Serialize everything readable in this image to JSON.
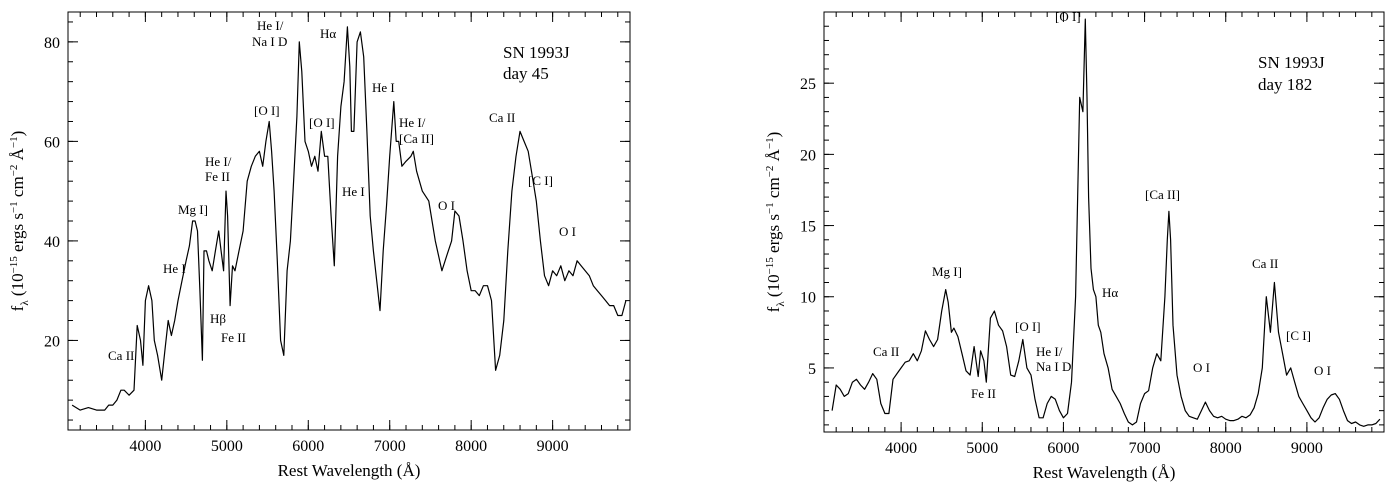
{
  "figure": {
    "panels": [
      {
        "panel_id": "left"
      },
      {
        "panel_id": "right"
      }
    ]
  },
  "chart_data": [
    {
      "type": "line",
      "title": "SN 1993J",
      "subtitle": "day 45",
      "xlabel": "Rest Wavelength (Å)",
      "ylabel": "f_λ (10^-15 ergs s^-1 cm^-2 Å^-1)",
      "xlim": [
        3050,
        9950
      ],
      "ylim": [
        2,
        86
      ],
      "grid": false,
      "x_ticks": [
        4000,
        5000,
        6000,
        7000,
        8000,
        9000
      ],
      "y_ticks": [
        20,
        40,
        60,
        80
      ],
      "series": [
        {
          "x": [
            3100,
            3200,
            3300,
            3400,
            3500,
            3550,
            3600,
            3650,
            3700,
            3740,
            3800,
            3860,
            3900,
            3940,
            3970,
            4000,
            4040,
            4080,
            4110,
            4150,
            4200,
            4240,
            4280,
            4320,
            4360,
            4400,
            4450,
            4500,
            4540,
            4580,
            4610,
            4640,
            4670,
            4700,
            4720,
            4750,
            4780,
            4820,
            4860,
            4900,
            4930,
            4960,
            4990,
            5010,
            5040,
            5070,
            5100,
            5150,
            5200,
            5250,
            5300,
            5350,
            5400,
            5440,
            5480,
            5520,
            5550,
            5580,
            5620,
            5660,
            5700,
            5740,
            5780,
            5820,
            5860,
            5890,
            5920,
            5960,
            6000,
            6040,
            6080,
            6120,
            6160,
            6200,
            6240,
            6280,
            6320,
            6360,
            6400,
            6440,
            6480,
            6510,
            6530,
            6560,
            6600,
            6640,
            6680,
            6720,
            6760,
            6800,
            6840,
            6880,
            6920,
            6960,
            7000,
            7050,
            7080,
            7110,
            7150,
            7200,
            7260,
            7290,
            7330,
            7400,
            7480,
            7560,
            7640,
            7700,
            7760,
            7800,
            7850,
            7900,
            7950,
            8000,
            8050,
            8100,
            8150,
            8200,
            8250,
            8300,
            8350,
            8400,
            8450,
            8500,
            8550,
            8600,
            8650,
            8700,
            8750,
            8800,
            8850,
            8900,
            8950,
            9000,
            9050,
            9100,
            9150,
            9200,
            9250,
            9300,
            9350,
            9400,
            9450,
            9500,
            9550,
            9600,
            9650,
            9700,
            9750,
            9800,
            9850,
            9900
          ],
          "y": [
            7,
            6,
            6.5,
            6,
            6,
            7,
            7,
            8,
            10,
            10,
            9,
            10,
            23,
            20,
            15,
            28,
            31,
            28,
            20,
            17,
            12,
            18,
            24,
            21,
            24,
            28,
            32,
            36,
            39,
            44,
            44,
            42,
            30,
            16,
            38,
            38,
            36,
            34,
            38,
            42,
            38,
            34,
            50,
            45,
            27,
            35,
            34,
            38,
            42,
            52,
            55,
            57,
            58,
            55,
            60,
            64,
            58,
            50,
            36,
            20,
            17,
            34,
            40,
            52,
            65,
            80,
            74,
            60,
            58,
            55,
            57,
            54,
            62,
            57,
            57,
            45,
            35,
            57,
            67,
            72,
            83,
            75,
            62,
            62,
            80,
            82,
            77,
            62,
            45,
            38,
            32,
            26,
            38,
            47,
            57,
            68,
            60,
            60,
            55,
            56,
            57,
            58,
            54,
            50,
            48,
            40,
            34,
            37,
            40,
            46,
            45,
            40,
            34,
            30,
            30,
            29,
            31,
            31,
            28,
            14,
            17,
            24,
            38,
            50,
            57,
            62,
            60,
            58,
            53,
            48,
            40,
            33,
            31,
            34,
            33,
            35,
            32,
            34,
            33,
            36,
            35,
            34,
            33,
            31,
            30,
            29,
            28,
            27,
            27,
            25,
            25,
            28
          ]
        }
      ],
      "annotations": [
        "Ca II",
        "He I",
        "Mg I]",
        "He I/",
        "Fe II",
        "Hβ",
        "Fe II",
        "[O I]",
        "He I/",
        "Na I D",
        "[O I]",
        "He I",
        "Hα",
        "He I",
        "He I/",
        "[Ca II]",
        "O I",
        "Ca II",
        "[C I]",
        "O I"
      ]
    },
    {
      "type": "line",
      "title": "SN 1993J",
      "subtitle": "day 182",
      "xlabel": "Rest Wavelength (Å)",
      "ylabel": "f_λ (10^-15 ergs s^-1 cm^-2 Å^-1)",
      "xlim": [
        3050,
        9950
      ],
      "ylim": [
        0.5,
        30
      ],
      "grid": false,
      "x_ticks": [
        4000,
        5000,
        6000,
        7000,
        8000,
        9000
      ],
      "y_ticks": [
        5,
        10,
        15,
        20,
        25
      ],
      "series": [
        {
          "x": [
            3150,
            3200,
            3250,
            3300,
            3350,
            3400,
            3450,
            3500,
            3550,
            3600,
            3650,
            3700,
            3750,
            3800,
            3850,
            3900,
            3950,
            4000,
            4050,
            4100,
            4150,
            4200,
            4250,
            4300,
            4350,
            4400,
            4450,
            4500,
            4550,
            4580,
            4620,
            4650,
            4700,
            4750,
            4800,
            4850,
            4900,
            4950,
            4980,
            5020,
            5050,
            5100,
            5150,
            5200,
            5250,
            5300,
            5350,
            5400,
            5450,
            5500,
            5550,
            5600,
            5650,
            5700,
            5750,
            5800,
            5850,
            5900,
            5950,
            6000,
            6050,
            6100,
            6150,
            6200,
            6240,
            6270,
            6290,
            6310,
            6340,
            6370,
            6400,
            6430,
            6460,
            6500,
            6550,
            6600,
            6650,
            6700,
            6750,
            6800,
            6850,
            6900,
            6950,
            7000,
            7050,
            7100,
            7150,
            7200,
            7250,
            7280,
            7300,
            7320,
            7350,
            7400,
            7450,
            7500,
            7550,
            7600,
            7650,
            7700,
            7750,
            7800,
            7850,
            7900,
            7950,
            8000,
            8050,
            8100,
            8150,
            8200,
            8250,
            8300,
            8350,
            8400,
            8450,
            8500,
            8550,
            8600,
            8650,
            8700,
            8750,
            8800,
            8850,
            8900,
            8950,
            9000,
            9050,
            9100,
            9150,
            9200,
            9250,
            9300,
            9350,
            9400,
            9450,
            9500,
            9550,
            9600,
            9650,
            9700,
            9750,
            9800,
            9850,
            9900
          ],
          "y": [
            2,
            3.8,
            3.5,
            3.0,
            3.2,
            4.0,
            4.2,
            3.8,
            3.5,
            4.0,
            4.6,
            4.2,
            2.5,
            1.8,
            1.8,
            4.2,
            4.6,
            5.0,
            5.4,
            5.5,
            6.0,
            5.5,
            6.2,
            7.6,
            7.0,
            6.5,
            7.0,
            9.0,
            10.5,
            9.6,
            7.5,
            7.8,
            7.2,
            6.0,
            4.8,
            4.5,
            6.5,
            4.4,
            6.2,
            5.5,
            4.0,
            8.5,
            9.0,
            8.0,
            7.6,
            6.5,
            4.5,
            4.4,
            5.5,
            7.0,
            5.0,
            4.5,
            2.8,
            1.5,
            1.5,
            2.5,
            3.0,
            2.8,
            2.0,
            1.5,
            1.8,
            4.0,
            10.0,
            24.0,
            23.0,
            29.5,
            24.0,
            17.0,
            12.0,
            10.5,
            10.0,
            8.0,
            7.5,
            6.0,
            5.0,
            3.5,
            3.0,
            2.5,
            1.8,
            1.2,
            1.0,
            1.2,
            2.5,
            3.2,
            3.4,
            5.0,
            6.0,
            5.5,
            10.0,
            14.0,
            16.0,
            14.0,
            8.0,
            4.5,
            3.0,
            2.0,
            1.6,
            1.5,
            1.4,
            2.0,
            2.6,
            2.0,
            1.6,
            1.5,
            1.6,
            1.4,
            1.3,
            1.3,
            1.4,
            1.6,
            1.5,
            1.7,
            2.2,
            3.2,
            5.0,
            10.0,
            7.5,
            11.0,
            7.5,
            6.0,
            4.5,
            5.0,
            4.0,
            3.0,
            2.5,
            2.0,
            1.5,
            1.2,
            1.5,
            2.2,
            2.8,
            3.1,
            3.2,
            2.8,
            2.0,
            1.3,
            1.1,
            1.2,
            1.0,
            0.9,
            1.0,
            1.0,
            1.1,
            1.4
          ]
        }
      ],
      "annotations": [
        "Ca II",
        "Mg I]",
        "Fe II",
        "[O I]",
        "He I/",
        "Na I D",
        "[O I]",
        "Hα",
        "[Ca II]",
        "O I",
        "Ca II",
        "[C I]",
        "O I"
      ]
    }
  ]
}
